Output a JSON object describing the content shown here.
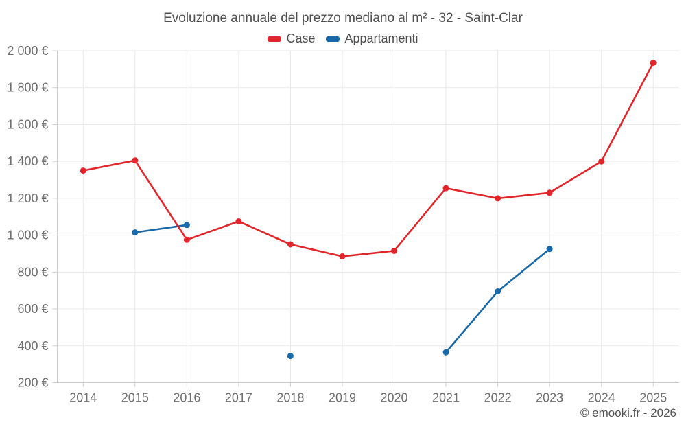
{
  "chart_data": {
    "type": "line",
    "title": "Evoluzione annuale del prezzo mediano al m² - 32 - Saint-Clar",
    "categories": [
      "2014",
      "2015",
      "2016",
      "2017",
      "2018",
      "2019",
      "2020",
      "2021",
      "2022",
      "2023",
      "2024",
      "2025"
    ],
    "series": [
      {
        "name": "Case",
        "color": "#e1252b",
        "values": [
          1350,
          1405,
          975,
          1075,
          950,
          885,
          915,
          1255,
          1200,
          1230,
          1400,
          1935
        ]
      },
      {
        "name": "Appartamenti",
        "color": "#1769aa",
        "values": [
          null,
          1015,
          1055,
          null,
          345,
          null,
          null,
          365,
          695,
          925,
          null,
          null
        ]
      }
    ],
    "ylim": [
      200,
      2000
    ],
    "ytick_step": 200,
    "yticks": [
      {
        "value": 2000,
        "label": "2 000 €"
      },
      {
        "value": 1800,
        "label": "1 800 €"
      },
      {
        "value": 1600,
        "label": "1 600 €"
      },
      {
        "value": 1400,
        "label": "1 400 €"
      },
      {
        "value": 1200,
        "label": "1 200 €"
      },
      {
        "value": 1000,
        "label": "1 000 €"
      },
      {
        "value": 800,
        "label": "800 €"
      },
      {
        "value": 600,
        "label": "600 €"
      },
      {
        "value": 400,
        "label": "400 €"
      },
      {
        "value": 200,
        "label": "200 €"
      }
    ],
    "grid": true,
    "legend_position": "top",
    "marker_radius": 4.5,
    "line_width": 2.6
  },
  "colors": {
    "grid": "#e9e9e9",
    "axis": "#cccccc",
    "axis_text": "#6f6f6f",
    "title_text": "#4f4f4f",
    "background": "#ffffff"
  },
  "footer": {
    "copyright": "© emooki.fr - 2026"
  }
}
